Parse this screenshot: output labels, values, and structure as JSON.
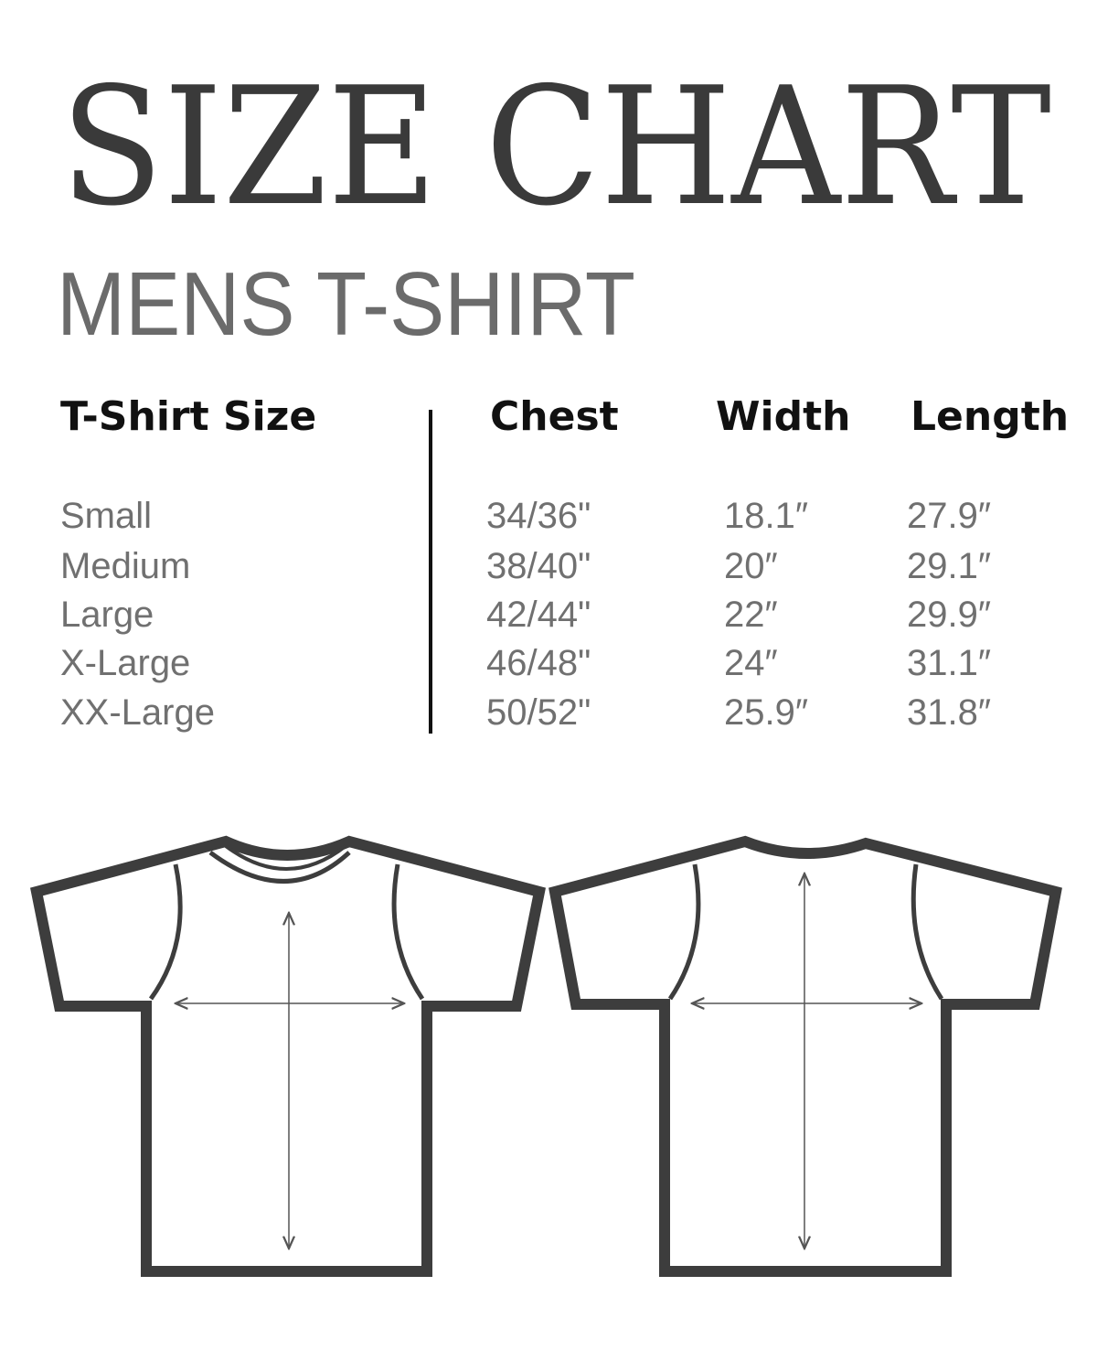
{
  "title": "SIZE CHART",
  "subtitle": "MENS T-SHIRT",
  "table": {
    "headers": [
      "T-Shirt Size",
      "Chest",
      "Width",
      "Length"
    ],
    "rows": [
      [
        "Small",
        "34/36\"",
        "18.1″",
        "27.9″"
      ],
      [
        "Medium",
        "38/40\"",
        "20″",
        "29.1″"
      ],
      [
        "Large",
        "42/44\"",
        "22″",
        "29.9″"
      ],
      [
        "X-Large",
        "46/48\"",
        "24″",
        "31.1″"
      ],
      [
        "XX-Large",
        "50/52\"",
        "25.9″",
        "31.8″"
      ]
    ]
  },
  "colors": {
    "title": "#3a3a3a",
    "subtitle": "#6b6b6b",
    "header": "#111111",
    "values": "#707070",
    "outline": "#3d3d3d"
  },
  "illustrations": [
    "tshirt-front-icon",
    "tshirt-back-icon"
  ]
}
